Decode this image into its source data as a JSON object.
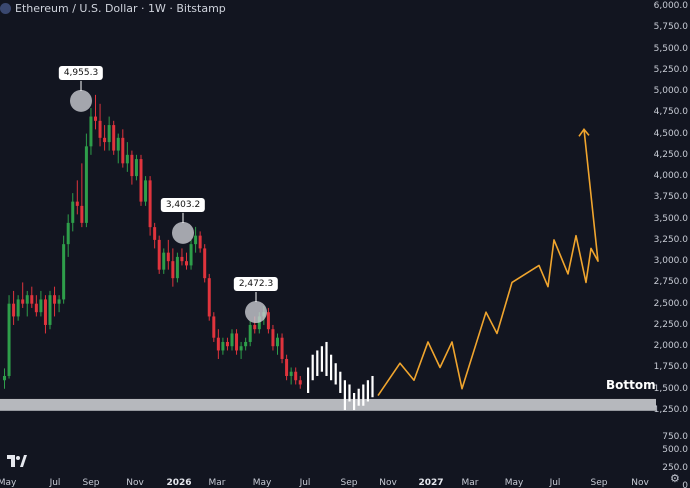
{
  "header": {
    "title": "Ethereum / U.S. Dollar · 1W · Bitstamp"
  },
  "chart_data": {
    "type": "candlestick",
    "y_axis": {
      "ticks": [
        {
          "value": 6000,
          "label": "6,000.0"
        },
        {
          "value": 5750,
          "label": "5,750.0"
        },
        {
          "value": 5500,
          "label": "5,500.0"
        },
        {
          "value": 5250,
          "label": "5,250.0"
        },
        {
          "value": 5000,
          "label": "5,000.0"
        },
        {
          "value": 4750,
          "label": "4,750.0"
        },
        {
          "value": 4500,
          "label": "4,500.0"
        },
        {
          "value": 4250,
          "label": "4,250.0"
        },
        {
          "value": 4000,
          "label": "4,000.0"
        },
        {
          "value": 3750,
          "label": "3,750.0"
        },
        {
          "value": 3500,
          "label": "3,500.0"
        },
        {
          "value": 3250,
          "label": "3,250.0"
        },
        {
          "value": 3000,
          "label": "3,000.0"
        },
        {
          "value": 2750,
          "label": "2,750.0"
        },
        {
          "value": 2500,
          "label": "2,500.0"
        },
        {
          "value": 2250,
          "label": "2,250.0"
        },
        {
          "value": 2000,
          "label": "2,000.0"
        },
        {
          "value": 1750,
          "label": "1,750.0"
        },
        {
          "value": 1500,
          "label": "1,500.0"
        },
        {
          "value": 1250,
          "label": "1,250.0"
        },
        {
          "value": 750,
          "label": "750.0"
        },
        {
          "value": 500,
          "label": "500.0"
        },
        {
          "value": 250,
          "label": "250.0"
        },
        {
          "value": 0,
          "label": "0"
        }
      ],
      "ylim": [
        0,
        6000
      ]
    },
    "x_axis": {
      "ticks": [
        {
          "label": "May",
          "bold": false
        },
        {
          "label": "Jul",
          "bold": false
        },
        {
          "label": "Sep",
          "bold": false
        },
        {
          "label": "Nov",
          "bold": false
        },
        {
          "label": "2026",
          "bold": true
        },
        {
          "label": "Mar",
          "bold": false
        },
        {
          "label": "May",
          "bold": false
        },
        {
          "label": "Jul",
          "bold": false
        },
        {
          "label": "Sep",
          "bold": false
        },
        {
          "label": "Nov",
          "bold": false
        },
        {
          "label": "2027",
          "bold": true
        },
        {
          "label": "Mar",
          "bold": false
        },
        {
          "label": "May",
          "bold": false
        },
        {
          "label": "Jul",
          "bold": false
        },
        {
          "label": "Sep",
          "bold": false
        },
        {
          "label": "Nov",
          "bold": false
        }
      ]
    },
    "candles": [
      [
        1600,
        1740,
        1500,
        1650
      ],
      [
        1650,
        2600,
        1620,
        2500
      ],
      [
        2500,
        2650,
        2250,
        2350
      ],
      [
        2350,
        2600,
        2300,
        2550
      ],
      [
        2550,
        2750,
        2450,
        2500
      ],
      [
        2500,
        2650,
        2350,
        2600
      ],
      [
        2600,
        2700,
        2450,
        2500
      ],
      [
        2500,
        2600,
        2350,
        2400
      ],
      [
        2400,
        2650,
        2350,
        2550
      ],
      [
        2550,
        2600,
        2150,
        2250
      ],
      [
        2250,
        2650,
        2200,
        2600
      ],
      [
        2600,
        2700,
        2350,
        2500
      ],
      [
        2500,
        2600,
        2400,
        2550
      ],
      [
        2550,
        3300,
        2500,
        3200
      ],
      [
        3200,
        3550,
        3050,
        3450
      ],
      [
        3450,
        3800,
        3350,
        3700
      ],
      [
        3700,
        3950,
        3550,
        3650
      ],
      [
        3650,
        4150,
        3400,
        3450
      ],
      [
        3450,
        4500,
        3400,
        4350
      ],
      [
        4350,
        4800,
        4250,
        4700
      ],
      [
        4700,
        4955,
        4550,
        4650
      ],
      [
        4650,
        4850,
        4350,
        4450
      ],
      [
        4450,
        4600,
        4300,
        4400
      ],
      [
        4400,
        4700,
        4300,
        4600
      ],
      [
        4600,
        4650,
        4250,
        4300
      ],
      [
        4300,
        4500,
        4150,
        4450
      ],
      [
        4450,
        4550,
        4100,
        4150
      ],
      [
        4150,
        4400,
        4050,
        4250
      ],
      [
        4250,
        4300,
        3900,
        4000
      ],
      [
        4000,
        4250,
        3950,
        4200
      ],
      [
        4200,
        4250,
        3650,
        3700
      ],
      [
        3700,
        4000,
        3650,
        3950
      ],
      [
        3950,
        4000,
        3300,
        3400
      ],
      [
        3400,
        3450,
        3150,
        3250
      ],
      [
        3250,
        3300,
        2850,
        2900
      ],
      [
        2900,
        3150,
        2850,
        3100
      ],
      [
        3100,
        3250,
        2900,
        3000
      ],
      [
        3000,
        3150,
        2700,
        2800
      ],
      [
        2800,
        3100,
        2750,
        3050
      ],
      [
        3050,
        3150,
        2950,
        3000
      ],
      [
        3000,
        3100,
        2900,
        2950
      ],
      [
        2950,
        3250,
        2900,
        3200
      ],
      [
        3200,
        3403,
        3100,
        3300
      ],
      [
        3300,
        3350,
        3100,
        3150
      ],
      [
        3150,
        3200,
        2750,
        2800
      ],
      [
        2800,
        2850,
        2300,
        2350
      ],
      [
        2350,
        2400,
        2050,
        2100
      ],
      [
        2100,
        2200,
        1850,
        1950
      ],
      [
        1950,
        2100,
        1900,
        2050
      ],
      [
        2050,
        2100,
        1950,
        2000
      ],
      [
        2000,
        2200,
        1950,
        2150
      ],
      [
        2150,
        2200,
        1900,
        1950
      ],
      [
        1950,
        2050,
        1850,
        2000
      ],
      [
        2000,
        2100,
        1950,
        2050
      ],
      [
        2050,
        2300,
        2000,
        2250
      ],
      [
        2250,
        2350,
        2150,
        2200
      ],
      [
        2200,
        2400,
        2150,
        2350
      ],
      [
        2350,
        2472,
        2250,
        2400
      ],
      [
        2400,
        2450,
        2150,
        2200
      ],
      [
        2200,
        2250,
        1950,
        2000
      ],
      [
        2000,
        2150,
        1900,
        2100
      ],
      [
        2100,
        2150,
        1800,
        1850
      ],
      [
        1850,
        1900,
        1600,
        1650
      ],
      [
        1650,
        1750,
        1550,
        1700
      ],
      [
        1700,
        1750,
        1550,
        1600
      ],
      [
        1600,
        1650,
        1500,
        1550
      ]
    ],
    "projected_bars": [
      [
        1450,
        1750
      ],
      [
        1600,
        1900
      ],
      [
        1650,
        1950
      ],
      [
        1700,
        2000
      ],
      [
        1650,
        2050
      ],
      [
        1600,
        1900
      ],
      [
        1550,
        1800
      ],
      [
        1450,
        1700
      ],
      [
        1250,
        1600
      ],
      [
        1350,
        1550
      ],
      [
        1250,
        1450
      ],
      [
        1300,
        1500
      ],
      [
        1300,
        1550
      ],
      [
        1350,
        1600
      ],
      [
        1400,
        1650
      ]
    ],
    "forecast_path": [
      [
        0,
        1420
      ],
      [
        1,
        1800
      ],
      [
        2,
        1600
      ],
      [
        3,
        2050
      ],
      [
        4,
        1750
      ],
      [
        5,
        2050
      ],
      [
        6,
        1500
      ],
      [
        7,
        2400
      ],
      [
        8,
        2150
      ],
      [
        9,
        2750
      ],
      [
        10,
        2950
      ],
      [
        11,
        2700
      ],
      [
        12,
        3250
      ],
      [
        13,
        2850
      ],
      [
        14,
        3300
      ],
      [
        15,
        2750
      ],
      [
        16,
        3150
      ],
      [
        17,
        3000
      ],
      [
        18,
        4550
      ]
    ],
    "callouts": [
      {
        "label": "4,955.3",
        "value": 4955.3
      },
      {
        "label": "3,403.2",
        "value": 3403.2
      },
      {
        "label": "2,472.3",
        "value": 2472.3
      }
    ],
    "support_zone": {
      "low": 1235,
      "high": 1380,
      "label": "Bottom"
    },
    "colors": {
      "background": "#121520",
      "up": "#2e9e4a",
      "down": "#e0343d",
      "projected": "#ffffff",
      "forecast": "#f0a52e",
      "zone": "#d4d5d9"
    }
  }
}
